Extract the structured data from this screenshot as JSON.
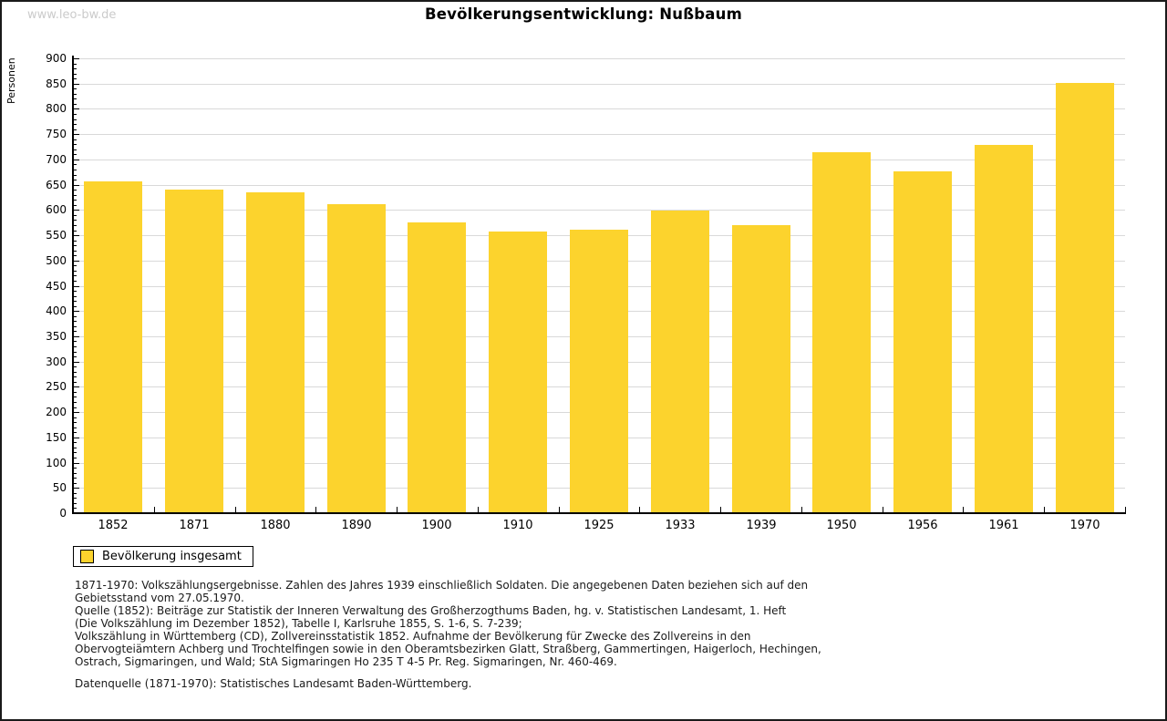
{
  "watermark": "www.leo-bw.de",
  "title": "Bevölkerungsentwicklung: Nußbaum",
  "chart_data": {
    "type": "bar",
    "title": "Bevölkerungsentwicklung: Nußbaum",
    "xlabel": "",
    "ylabel": "Personen",
    "ylim": [
      0,
      900
    ],
    "y_major_step": 50,
    "y_minor_step": 10,
    "grid": true,
    "bar_color": "#FCD32D",
    "gridline_color": "#d9d9d9",
    "legend_position": "bottom-left",
    "categories": [
      "1852",
      "1871",
      "1880",
      "1890",
      "1900",
      "1910",
      "1925",
      "1933",
      "1939",
      "1950",
      "1956",
      "1961",
      "1970"
    ],
    "series": [
      {
        "name": "Bevölkerung insgesamt",
        "values": [
          657,
          640,
          634,
          611,
          576,
          558,
          561,
          599,
          570,
          715,
          677,
          729,
          852
        ]
      }
    ]
  },
  "legend": {
    "swatch_color": "#FCD32D",
    "label": "Bevölkerung insgesamt"
  },
  "footnotes": {
    "lines": [
      "1871-1970: Volkszählungsergebnisse. Zahlen des Jahres 1939 einschließlich Soldaten. Die angegebenen Daten beziehen sich auf den",
      "Gebietsstand vom 27.05.1970.",
      "Quelle (1852): Beiträge zur Statistik der Inneren Verwaltung des Großherzogthums Baden, hg. v. Statistischen Landesamt, 1. Heft",
      "(Die Volkszählung im Dezember 1852), Tabelle I, Karlsruhe 1855, S. 1-6, S. 7-239;",
      "Volkszählung in Württemberg (CD), Zollvereinsstatistik 1852. Aufnahme der Bevölkerung für Zwecke des Zollvereins in den",
      "Obervogteiämtern Achberg und Trochtelfingen sowie in den Oberamtsbezirken Glatt, Straßberg, Gammertingen, Haigerloch, Hechingen,",
      "Ostrach, Sigmaringen, und Wald; StA Sigmaringen Ho 235 T 4-5 Pr. Reg. Sigmaringen, Nr. 460-469."
    ],
    "datasource": "Datenquelle (1871-1970): Statistisches Landesamt Baden-Württemberg."
  }
}
